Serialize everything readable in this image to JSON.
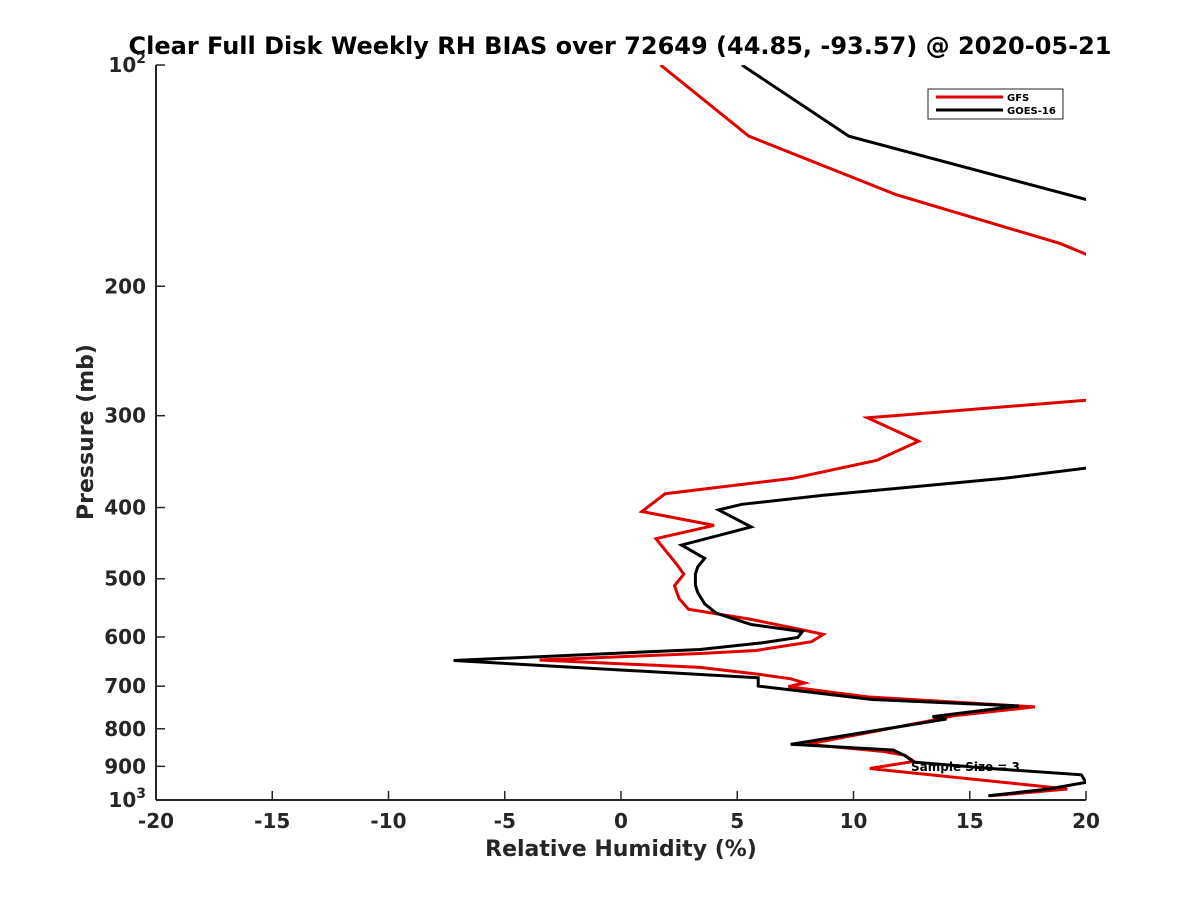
{
  "chart_data": {
    "type": "line",
    "title": "Clear Full Disk Weekly RH BIAS over 72649 (44.85, -93.57) @ 2020-05-21",
    "xlabel": "Relative Humidity (%)",
    "ylabel": "Pressure (mb)",
    "xlim": [
      -20,
      20
    ],
    "ylim": [
      100,
      1000
    ],
    "y_scale": "log",
    "y_reversed": true,
    "x_ticks": [
      "-20",
      "-15",
      "-10",
      "-5",
      "0",
      "5",
      "10",
      "15",
      "20"
    ],
    "y_ticks": [
      {
        "value": 100,
        "base": "10",
        "exp": "2"
      },
      {
        "value": 200,
        "label": "200"
      },
      {
        "value": 300,
        "label": "300"
      },
      {
        "value": 400,
        "label": "400"
      },
      {
        "value": 500,
        "label": "500"
      },
      {
        "value": 600,
        "label": "600"
      },
      {
        "value": 700,
        "label": "700"
      },
      {
        "value": 800,
        "label": "800"
      },
      {
        "value": 900,
        "label": "900"
      },
      {
        "value": 1000,
        "base": "10",
        "exp": "3"
      }
    ],
    "grid": false,
    "legend_position": "top-right",
    "annotation": "Sample Size = 3",
    "series": [
      {
        "name": "GFS",
        "color": "#e00000",
        "points": [
          {
            "x": 1.7,
            "p": 100
          },
          {
            "x": 5.5,
            "p": 125
          },
          {
            "x": 11.8,
            "p": 150
          },
          {
            "x": 18.9,
            "p": 175
          },
          {
            "x": 20.2,
            "p": 182
          },
          {
            "x": 20.5,
            "p": 285
          },
          {
            "x": 10.6,
            "p": 302
          },
          {
            "x": 12.8,
            "p": 325
          },
          {
            "x": 11.0,
            "p": 345
          },
          {
            "x": 7.4,
            "p": 365
          },
          {
            "x": 1.9,
            "p": 383
          },
          {
            "x": 0.9,
            "p": 405
          },
          {
            "x": 4.0,
            "p": 423
          },
          {
            "x": 1.5,
            "p": 441
          },
          {
            "x": 2.4,
            "p": 478
          },
          {
            "x": 2.7,
            "p": 493
          },
          {
            "x": 2.3,
            "p": 511
          },
          {
            "x": 2.5,
            "p": 532
          },
          {
            "x": 2.9,
            "p": 550
          },
          {
            "x": 5.6,
            "p": 568
          },
          {
            "x": 7.7,
            "p": 586
          },
          {
            "x": 8.7,
            "p": 595
          },
          {
            "x": 8.2,
            "p": 609
          },
          {
            "x": 5.8,
            "p": 626
          },
          {
            "x": 3.4,
            "p": 632
          },
          {
            "x": -3.5,
            "p": 645
          },
          {
            "x": 3.4,
            "p": 660
          },
          {
            "x": 6.0,
            "p": 675
          },
          {
            "x": 7.3,
            "p": 684
          },
          {
            "x": 7.9,
            "p": 693
          },
          {
            "x": 7.2,
            "p": 701
          },
          {
            "x": 10.6,
            "p": 724
          },
          {
            "x": 17.8,
            "p": 747
          },
          {
            "x": 14.3,
            "p": 768
          },
          {
            "x": 13.7,
            "p": 776
          },
          {
            "x": 8.0,
            "p": 840
          },
          {
            "x": 11.3,
            "p": 859
          },
          {
            "x": 12.2,
            "p": 869
          },
          {
            "x": 12.6,
            "p": 886
          },
          {
            "x": 10.7,
            "p": 906
          },
          {
            "x": 19.2,
            "p": 966
          },
          {
            "x": 15.9,
            "p": 987
          }
        ]
      },
      {
        "name": "GOES-16",
        "color": "#000000",
        "points": [
          {
            "x": 5.2,
            "p": 100
          },
          {
            "x": 9.8,
            "p": 125
          },
          {
            "x": 20.2,
            "p": 153
          },
          {
            "x": 20.5,
            "p": 352
          },
          {
            "x": 16.5,
            "p": 365
          },
          {
            "x": 8.7,
            "p": 385
          },
          {
            "x": 5.2,
            "p": 396
          },
          {
            "x": 4.2,
            "p": 403
          },
          {
            "x": 5.6,
            "p": 425
          },
          {
            "x": 2.6,
            "p": 450
          },
          {
            "x": 3.6,
            "p": 469
          },
          {
            "x": 3.3,
            "p": 482
          },
          {
            "x": 3.2,
            "p": 493
          },
          {
            "x": 3.2,
            "p": 510
          },
          {
            "x": 3.3,
            "p": 522
          },
          {
            "x": 3.6,
            "p": 541
          },
          {
            "x": 4.1,
            "p": 557
          },
          {
            "x": 5.6,
            "p": 577
          },
          {
            "x": 7.8,
            "p": 590
          },
          {
            "x": 7.6,
            "p": 601
          },
          {
            "x": 6.1,
            "p": 611
          },
          {
            "x": 3.4,
            "p": 624
          },
          {
            "x": -7.2,
            "p": 646
          },
          {
            "x": 5.9,
            "p": 682
          },
          {
            "x": 5.9,
            "p": 700
          },
          {
            "x": 10.8,
            "p": 730
          },
          {
            "x": 17.1,
            "p": 745
          },
          {
            "x": 13.4,
            "p": 770
          },
          {
            "x": 14.0,
            "p": 776
          },
          {
            "x": 7.3,
            "p": 840
          },
          {
            "x": 11.7,
            "p": 855
          },
          {
            "x": 12.2,
            "p": 870
          },
          {
            "x": 12.6,
            "p": 888
          },
          {
            "x": 15.9,
            "p": 906
          },
          {
            "x": 19.8,
            "p": 924
          },
          {
            "x": 20.0,
            "p": 946
          },
          {
            "x": 18.4,
            "p": 966
          },
          {
            "x": 15.8,
            "p": 987
          }
        ]
      }
    ]
  }
}
